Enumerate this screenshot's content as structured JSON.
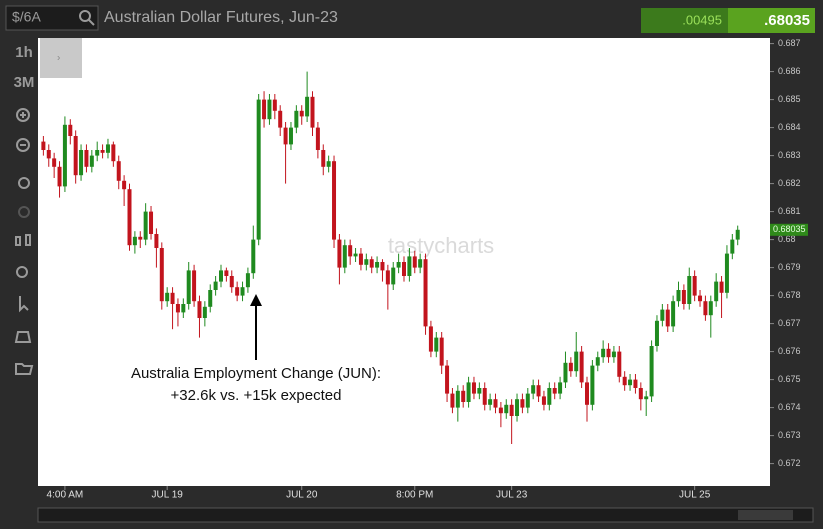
{
  "header": {
    "symbol": "$/6A",
    "title": "Australian Dollar Futures, Jun-23",
    "change": ".00495",
    "price": ".68035"
  },
  "toolbar": {
    "interval": "1h",
    "range": "3M"
  },
  "chart_data": {
    "type": "candlestick",
    "watermark": "tastycharts",
    "annotation": [
      "Australia Employment Change (JUN):",
      "+32.6k vs. +15k expected"
    ],
    "up_color": "#1f8a1f",
    "down_color": "#c2141d",
    "last_price": 0.68035,
    "ylim": [
      0.6712,
      0.6872
    ],
    "yticks": [
      0.672,
      0.673,
      0.674,
      0.675,
      0.676,
      0.677,
      0.678,
      0.679,
      0.68,
      0.681,
      0.682,
      0.683,
      0.684,
      0.685,
      0.686,
      0.687
    ],
    "xlim": [
      -1,
      135
    ],
    "xticks": [
      {
        "value": 4,
        "label": "4:00 AM"
      },
      {
        "value": 23,
        "label": "JUL 19"
      },
      {
        "value": 48,
        "label": "JUL 20"
      },
      {
        "value": 69,
        "label": "8:00 PM"
      },
      {
        "value": 87,
        "label": "JUL 23"
      },
      {
        "value": 121,
        "label": "JUL 25"
      }
    ],
    "ohlc": [
      [
        0.6835,
        0.6837,
        0.683,
        0.6832
      ],
      [
        0.6832,
        0.6834,
        0.6826,
        0.6829
      ],
      [
        0.6829,
        0.6831,
        0.6822,
        0.6826
      ],
      [
        0.6826,
        0.6828,
        0.6815,
        0.6819
      ],
      [
        0.6819,
        0.6844,
        0.6817,
        0.6841
      ],
      [
        0.6841,
        0.6843,
        0.6834,
        0.6837
      ],
      [
        0.6837,
        0.6839,
        0.682,
        0.6823
      ],
      [
        0.6823,
        0.6834,
        0.6821,
        0.6832
      ],
      [
        0.6832,
        0.6834,
        0.6824,
        0.6826
      ],
      [
        0.6826,
        0.6832,
        0.6824,
        0.683
      ],
      [
        0.683,
        0.6835,
        0.6828,
        0.6832
      ],
      [
        0.6832,
        0.6834,
        0.6829,
        0.6831
      ],
      [
        0.6831,
        0.6836,
        0.6829,
        0.6834
      ],
      [
        0.6834,
        0.6835,
        0.6826,
        0.6828
      ],
      [
        0.6828,
        0.683,
        0.6818,
        0.6821
      ],
      [
        0.6821,
        0.6823,
        0.6812,
        0.6818
      ],
      [
        0.6818,
        0.682,
        0.6796,
        0.6798
      ],
      [
        0.6798,
        0.6803,
        0.6795,
        0.6801
      ],
      [
        0.6801,
        0.6803,
        0.6797,
        0.68
      ],
      [
        0.68,
        0.6813,
        0.6798,
        0.681
      ],
      [
        0.681,
        0.6812,
        0.68,
        0.6802
      ],
      [
        0.6802,
        0.6804,
        0.679,
        0.6797
      ],
      [
        0.6797,
        0.6799,
        0.6775,
        0.6778
      ],
      [
        0.6778,
        0.6783,
        0.6776,
        0.6781
      ],
      [
        0.6781,
        0.6783,
        0.6768,
        0.6777
      ],
      [
        0.6777,
        0.6779,
        0.6769,
        0.6774
      ],
      [
        0.6774,
        0.6779,
        0.6772,
        0.6777
      ],
      [
        0.6777,
        0.6792,
        0.6775,
        0.6789
      ],
      [
        0.6789,
        0.6791,
        0.6776,
        0.6778
      ],
      [
        0.6778,
        0.678,
        0.6765,
        0.6772
      ],
      [
        0.6772,
        0.6778,
        0.6769,
        0.6776
      ],
      [
        0.6776,
        0.6784,
        0.6774,
        0.6782
      ],
      [
        0.6782,
        0.6787,
        0.678,
        0.6785
      ],
      [
        0.6785,
        0.6791,
        0.6783,
        0.6789
      ],
      [
        0.6789,
        0.679,
        0.6785,
        0.6787
      ],
      [
        0.6787,
        0.6789,
        0.6781,
        0.6783
      ],
      [
        0.6783,
        0.6785,
        0.6778,
        0.678
      ],
      [
        0.678,
        0.6785,
        0.6778,
        0.6783
      ],
      [
        0.6783,
        0.679,
        0.6781,
        0.6788
      ],
      [
        0.6788,
        0.6805,
        0.6786,
        0.68
      ],
      [
        0.68,
        0.6852,
        0.6798,
        0.685
      ],
      [
        0.685,
        0.6853,
        0.684,
        0.6843
      ],
      [
        0.6843,
        0.6852,
        0.6841,
        0.685
      ],
      [
        0.685,
        0.6852,
        0.6843,
        0.6846
      ],
      [
        0.6846,
        0.6848,
        0.6837,
        0.684
      ],
      [
        0.684,
        0.6842,
        0.682,
        0.6834
      ],
      [
        0.6834,
        0.6842,
        0.6832,
        0.684
      ],
      [
        0.684,
        0.6848,
        0.6838,
        0.6846
      ],
      [
        0.6846,
        0.6848,
        0.6841,
        0.6844
      ],
      [
        0.6844,
        0.686,
        0.6842,
        0.6851
      ],
      [
        0.6851,
        0.6853,
        0.6837,
        0.684
      ],
      [
        0.684,
        0.6842,
        0.6829,
        0.6832
      ],
      [
        0.6832,
        0.6834,
        0.6823,
        0.6826
      ],
      [
        0.6826,
        0.683,
        0.6824,
        0.6828
      ],
      [
        0.6828,
        0.683,
        0.6797,
        0.68
      ],
      [
        0.68,
        0.6802,
        0.6784,
        0.679
      ],
      [
        0.679,
        0.68,
        0.6788,
        0.6798
      ],
      [
        0.6798,
        0.68,
        0.6791,
        0.6794
      ],
      [
        0.6794,
        0.6797,
        0.6792,
        0.6795
      ],
      [
        0.6795,
        0.6797,
        0.6789,
        0.6791
      ],
      [
        0.6791,
        0.6795,
        0.6789,
        0.6793
      ],
      [
        0.6793,
        0.6794,
        0.6788,
        0.679
      ],
      [
        0.679,
        0.6794,
        0.6788,
        0.6792
      ],
      [
        0.6792,
        0.6793,
        0.6785,
        0.6789
      ],
      [
        0.6789,
        0.6791,
        0.6775,
        0.6784
      ],
      [
        0.6784,
        0.6792,
        0.6782,
        0.679
      ],
      [
        0.679,
        0.6795,
        0.6788,
        0.6792
      ],
      [
        0.6792,
        0.6794,
        0.6785,
        0.6787
      ],
      [
        0.6787,
        0.6797,
        0.6785,
        0.6794
      ],
      [
        0.6794,
        0.6796,
        0.6788,
        0.679
      ],
      [
        0.679,
        0.6795,
        0.6788,
        0.6793
      ],
      [
        0.6793,
        0.6795,
        0.6766,
        0.6769
      ],
      [
        0.6769,
        0.6771,
        0.6758,
        0.676
      ],
      [
        0.676,
        0.6767,
        0.6758,
        0.6765
      ],
      [
        0.6765,
        0.6767,
        0.6752,
        0.6755
      ],
      [
        0.6755,
        0.6757,
        0.6742,
        0.6745
      ],
      [
        0.6745,
        0.6747,
        0.6738,
        0.674
      ],
      [
        0.674,
        0.6748,
        0.6735,
        0.6746
      ],
      [
        0.6746,
        0.6748,
        0.674,
        0.6742
      ],
      [
        0.6742,
        0.6751,
        0.674,
        0.6749
      ],
      [
        0.6749,
        0.6751,
        0.6743,
        0.6745
      ],
      [
        0.6745,
        0.6749,
        0.6743,
        0.6747
      ],
      [
        0.6747,
        0.6749,
        0.6739,
        0.6741
      ],
      [
        0.6741,
        0.6745,
        0.6739,
        0.6743
      ],
      [
        0.6743,
        0.6745,
        0.6738,
        0.674
      ],
      [
        0.674,
        0.6742,
        0.6733,
        0.6738
      ],
      [
        0.6738,
        0.6743,
        0.6736,
        0.6741
      ],
      [
        0.6741,
        0.6743,
        0.6727,
        0.6737
      ],
      [
        0.6737,
        0.6745,
        0.6735,
        0.6743
      ],
      [
        0.6743,
        0.6745,
        0.6738,
        0.674
      ],
      [
        0.674,
        0.6747,
        0.6738,
        0.6745
      ],
      [
        0.6745,
        0.675,
        0.6743,
        0.6748
      ],
      [
        0.6748,
        0.675,
        0.6742,
        0.6744
      ],
      [
        0.6744,
        0.6746,
        0.6739,
        0.6741
      ],
      [
        0.6741,
        0.6749,
        0.6739,
        0.6747
      ],
      [
        0.6747,
        0.6749,
        0.6743,
        0.6745
      ],
      [
        0.6745,
        0.6751,
        0.6743,
        0.6749
      ],
      [
        0.6749,
        0.676,
        0.6747,
        0.6756
      ],
      [
        0.6756,
        0.6758,
        0.6751,
        0.6753
      ],
      [
        0.6753,
        0.6767,
        0.6751,
        0.676
      ],
      [
        0.676,
        0.6762,
        0.6747,
        0.6749
      ],
      [
        0.6749,
        0.6751,
        0.6735,
        0.6741
      ],
      [
        0.6741,
        0.6757,
        0.6739,
        0.6755
      ],
      [
        0.6755,
        0.676,
        0.6753,
        0.6758
      ],
      [
        0.6758,
        0.6764,
        0.6756,
        0.6761
      ],
      [
        0.6761,
        0.6763,
        0.6756,
        0.6758
      ],
      [
        0.6758,
        0.6762,
        0.6756,
        0.676
      ],
      [
        0.676,
        0.6762,
        0.6749,
        0.6751
      ],
      [
        0.6751,
        0.6753,
        0.6746,
        0.6748
      ],
      [
        0.6748,
        0.6752,
        0.6746,
        0.675
      ],
      [
        0.675,
        0.6752,
        0.6745,
        0.6747
      ],
      [
        0.6747,
        0.6749,
        0.6739,
        0.6743
      ],
      [
        0.6743,
        0.6746,
        0.6737,
        0.6744
      ],
      [
        0.6744,
        0.6764,
        0.6742,
        0.6762
      ],
      [
        0.6762,
        0.6773,
        0.676,
        0.6771
      ],
      [
        0.6771,
        0.6777,
        0.6769,
        0.6775
      ],
      [
        0.6775,
        0.6777,
        0.6767,
        0.6769
      ],
      [
        0.6769,
        0.678,
        0.6767,
        0.6778
      ],
      [
        0.6778,
        0.6785,
        0.6776,
        0.6782
      ],
      [
        0.6782,
        0.6784,
        0.6775,
        0.6777
      ],
      [
        0.6777,
        0.679,
        0.6775,
        0.6787
      ],
      [
        0.6787,
        0.6789,
        0.6778,
        0.678
      ],
      [
        0.678,
        0.6782,
        0.6776,
        0.6778
      ],
      [
        0.6778,
        0.678,
        0.6771,
        0.6773
      ],
      [
        0.6773,
        0.678,
        0.6765,
        0.6778
      ],
      [
        0.6778,
        0.6788,
        0.6776,
        0.6785
      ],
      [
        0.6785,
        0.6787,
        0.6772,
        0.6781
      ],
      [
        0.6781,
        0.6798,
        0.6779,
        0.6795
      ],
      [
        0.6795,
        0.6802,
        0.6793,
        0.68
      ],
      [
        0.68,
        0.6805,
        0.6798,
        0.68035
      ]
    ]
  }
}
